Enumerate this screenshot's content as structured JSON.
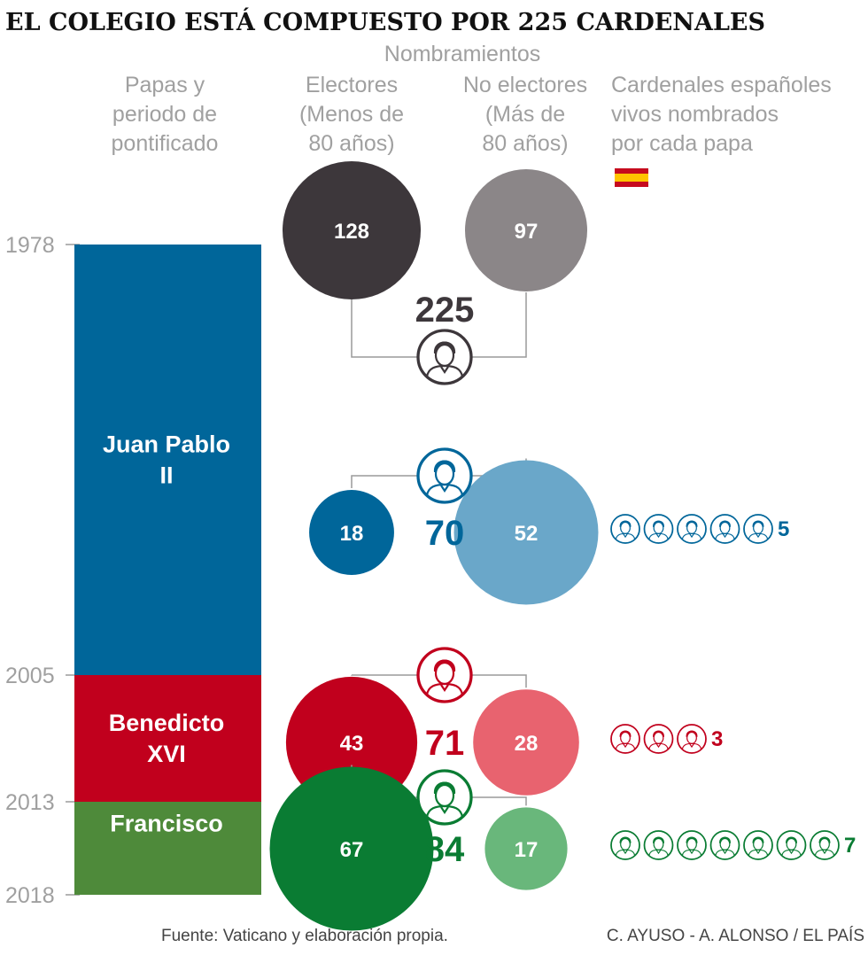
{
  "title": "EL COLEGIO ESTÁ COMPUESTO POR 225 CARDENALES",
  "headers": {
    "popes": [
      "Papas y",
      "periodo de",
      "pontificado"
    ],
    "appointments": "Nombramientos",
    "electors": [
      "Electores",
      "(Menos de",
      "80 años)"
    ],
    "non_electors": [
      "No electores",
      "(Más de",
      "80 años)"
    ],
    "spanish": [
      "Cardenales españoles",
      "vivos nombrados",
      "por cada papa"
    ]
  },
  "icon_names": {
    "flag": "spain-flag-icon",
    "cardinal": "cardinal-icon"
  },
  "footer": {
    "source": "Fuente: Vaticano y elaboración propia.",
    "credit": "C. AYUSO - A. ALONSO / EL PAÍS"
  },
  "chart_data": {
    "type": "bubble",
    "y_axis": {
      "ticks": [
        "1978",
        "2005",
        "2013",
        "2018"
      ],
      "range": [
        1978,
        2018
      ]
    },
    "total": {
      "electors": 128,
      "non_electors": 97,
      "total": "225"
    },
    "popes": [
      {
        "name": [
          "Juan Pablo",
          "II"
        ],
        "start": 1978,
        "end": 2005,
        "electors": 18,
        "non_electors": 52,
        "total": "70",
        "spanish": 5,
        "color": "#00669a",
        "light": "#6aa7c9"
      },
      {
        "name": [
          "Benedicto",
          "XVI"
        ],
        "start": 2005,
        "end": 2013,
        "electors": 43,
        "non_electors": 28,
        "total": "71",
        "spanish": 3,
        "color": "#c1001d",
        "light": "#e8636f"
      },
      {
        "name": [
          "Francisco"
        ],
        "start": 2013,
        "end": 2018,
        "electors": 67,
        "non_electors": 17,
        "total": "84",
        "spanish": 7,
        "color": "#0a7c33",
        "light": "#69b77b",
        "bar_color": "#4e8a3a"
      }
    ],
    "colors": {
      "electors_total": "#3d373b",
      "non_electors_total": "#8b8688",
      "header_text": "#a0a0a0",
      "connector": "#9a9a9a",
      "flag_red": "#c60b1e",
      "flag_yellow": "#ffc400"
    }
  }
}
